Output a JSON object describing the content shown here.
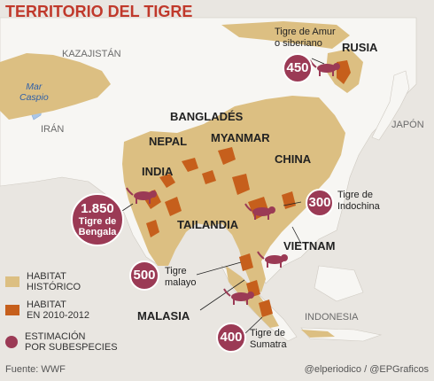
{
  "title": "TERRITORIO DEL TIGRE",
  "labels": {
    "kazajistan": "KAZAJISTÁN",
    "iran": "IRÁN",
    "mar_caspio_1": "Mar",
    "mar_caspio_2": "Caspio",
    "rusia": "RUSIA",
    "japon": "JAPÓN",
    "banglades": "BANGLADÉS",
    "nepal": "NEPAL",
    "myanmar": "MYANMAR",
    "china": "CHINA",
    "india": "INDIA",
    "tailandia": "TAILANDIA",
    "vietnam": "VIETNAM",
    "malasia": "MALASIA",
    "indonesia": "INDONESIA"
  },
  "subspecies": {
    "amur": {
      "count": "450",
      "name_1": "Tigre de Amur",
      "name_2": "o siberiano"
    },
    "bengala": {
      "count": "1.850",
      "name_1": "Tigre de",
      "name_2": "Bengala"
    },
    "indochina": {
      "count": "300",
      "name_1": "Tigre de",
      "name_2": "Indochina"
    },
    "malayo": {
      "count": "500",
      "name_1": "Tigre",
      "name_2": "malayo"
    },
    "sumatra": {
      "count": "400",
      "name_1": "Tigre de",
      "name_2": "Sumatra"
    }
  },
  "legend": {
    "historic_1": "HABITAT",
    "historic_2": "HISTÓRICO",
    "current_1": "HABITAT",
    "current_2": "EN 2010-2012",
    "estimate_1": "ESTIMACIÓN",
    "estimate_2": "POR SUBESPECIES"
  },
  "footer": {
    "source": "Fuente: WWF",
    "credit": "@elperiodico / @EPGraficos"
  },
  "colors": {
    "historic": "#dcbf82",
    "current": "#c65f1c",
    "estimate": "#9b3a55",
    "title": "#c0392b",
    "water": "#a9c6e8",
    "land": "#f7f6f3"
  }
}
